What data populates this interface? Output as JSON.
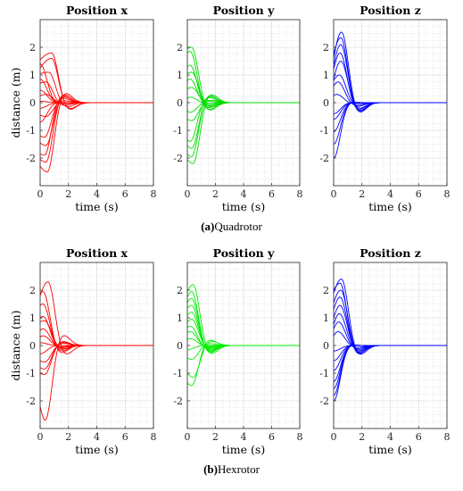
{
  "figure": {
    "captions": [
      {
        "tag": "(a)",
        "text": "Quadrotor"
      },
      {
        "tag": "(b)",
        "text": "Hexrotor"
      }
    ]
  },
  "chart_data": [
    {
      "type": "line",
      "title": "Position x",
      "xlabel": "time (s)",
      "ylabel": "distance (m)",
      "xlim": [
        0,
        8
      ],
      "ylim": [
        -3,
        3
      ],
      "xticks": [
        0,
        2,
        4,
        6,
        8
      ],
      "yticks": [
        -2,
        -1,
        0,
        1,
        2
      ],
      "grid": true,
      "color": "#ff0000",
      "series": [
        {
          "x0": 1.55,
          "peak": 1.8,
          "t_peak": 0.8
        },
        {
          "x0": 1.25,
          "peak": 1.6,
          "t_peak": 0.8
        },
        {
          "x0": 1.4,
          "peak": 1.4,
          "t_peak": 0.0
        },
        {
          "x0": 1.05,
          "peak": 1.1,
          "t_peak": 0.6
        },
        {
          "x0": 0.85,
          "peak": 0.85,
          "t_peak": 0.0
        },
        {
          "x0": 0.7,
          "peak": 0.75,
          "t_peak": 0.4
        },
        {
          "x0": 0.45,
          "peak": 0.45,
          "t_peak": 0.0
        },
        {
          "x0": 0.25,
          "peak": 0.3,
          "t_peak": 0.4
        },
        {
          "x0": 0.05,
          "peak": 0.05,
          "t_peak": 0.0
        },
        {
          "x0": -0.2,
          "peak": -0.2,
          "t_peak": 0.0
        },
        {
          "x0": -0.45,
          "peak": -0.5,
          "t_peak": 0.4
        },
        {
          "x0": -0.7,
          "peak": -0.7,
          "t_peak": 0.0
        },
        {
          "x0": -1.2,
          "peak": -1.25,
          "t_peak": 0.3
        },
        {
          "x0": -1.45,
          "peak": -1.55,
          "t_peak": 0.4
        },
        {
          "x0": -1.85,
          "peak": -1.9,
          "t_peak": 0.3
        },
        {
          "x0": -2.05,
          "peak": -2.15,
          "t_peak": 0.4
        },
        {
          "x0": -2.3,
          "peak": -2.5,
          "t_peak": 0.5
        }
      ]
    },
    {
      "type": "line",
      "title": "Position y",
      "xlabel": "time (s)",
      "ylabel": "",
      "xlim": [
        0,
        8
      ],
      "ylim": [
        -3,
        3
      ],
      "xticks": [
        0,
        2,
        4,
        6,
        8
      ],
      "yticks": [
        -2,
        -1,
        0,
        1,
        2
      ],
      "grid": true,
      "color": "#00dd00",
      "series": [
        {
          "x0": 1.95,
          "peak": 2.0,
          "t_peak": 0.3
        },
        {
          "x0": 1.8,
          "peak": 1.85,
          "t_peak": 0.2
        },
        {
          "x0": 1.3,
          "peak": 1.35,
          "t_peak": 0.2
        },
        {
          "x0": 1.05,
          "peak": 1.1,
          "t_peak": 0.3
        },
        {
          "x0": 0.8,
          "peak": 0.85,
          "t_peak": 0.2
        },
        {
          "x0": 0.5,
          "peak": 0.55,
          "t_peak": 0.3
        },
        {
          "x0": 0.15,
          "peak": 0.2,
          "t_peak": 0.2
        },
        {
          "x0": -0.3,
          "peak": -0.35,
          "t_peak": 0.2
        },
        {
          "x0": -0.6,
          "peak": -0.65,
          "t_peak": 0.3
        },
        {
          "x0": -1.35,
          "peak": -1.4,
          "t_peak": 0.2
        },
        {
          "x0": -1.55,
          "peak": -1.65,
          "t_peak": 0.3
        },
        {
          "x0": -1.85,
          "peak": -1.95,
          "t_peak": 0.3
        },
        {
          "x0": -2.05,
          "peak": -2.2,
          "t_peak": 0.4
        }
      ]
    },
    {
      "type": "line",
      "title": "Position z",
      "xlabel": "time (s)",
      "ylabel": "",
      "xlim": [
        0,
        8
      ],
      "ylim": [
        -3,
        3
      ],
      "xticks": [
        0,
        2,
        4,
        6,
        8
      ],
      "yticks": [
        -2,
        -1,
        0,
        1,
        2
      ],
      "grid": true,
      "color": "#0000ff",
      "series": [
        {
          "x0": 1.6,
          "peak": 2.55,
          "t_peak": 0.55
        },
        {
          "x0": 1.75,
          "peak": 2.35,
          "t_peak": 0.5
        },
        {
          "x0": 1.35,
          "peak": 2.1,
          "t_peak": 0.5
        },
        {
          "x0": 1.2,
          "peak": 1.8,
          "t_peak": 0.45
        },
        {
          "x0": 0.85,
          "peak": 1.5,
          "t_peak": 0.5
        },
        {
          "x0": 0.8,
          "peak": 1.0,
          "t_peak": 0.4
        },
        {
          "x0": 0.6,
          "peak": 0.75,
          "t_peak": 0.3
        },
        {
          "x0": 0.25,
          "peak": 0.3,
          "t_peak": 0.2
        },
        {
          "x0": -0.4,
          "peak": -0.4,
          "t_peak": 0.0
        },
        {
          "x0": -0.6,
          "peak": -0.6,
          "t_peak": 0.0
        },
        {
          "x0": -1.05,
          "peak": -1.05,
          "t_peak": 0.0
        },
        {
          "x0": -1.5,
          "peak": -1.5,
          "t_peak": 0.0
        },
        {
          "x0": -2.0,
          "peak": -2.0,
          "t_peak": 0.0
        }
      ]
    },
    {
      "type": "line",
      "title": "Position x",
      "xlabel": "time (s)",
      "ylabel": "distance (m)",
      "xlim": [
        0,
        8
      ],
      "ylim": [
        -3,
        3
      ],
      "xticks": [
        0,
        2,
        4,
        6,
        8
      ],
      "yticks": [
        -2,
        -1,
        0,
        1,
        2
      ],
      "grid": true,
      "color": "#ff0000",
      "series": [
        {
          "x0": 1.8,
          "peak": 2.3,
          "t_peak": 0.55
        },
        {
          "x0": 1.9,
          "peak": 1.95,
          "t_peak": 0.2
        },
        {
          "x0": 1.45,
          "peak": 1.5,
          "t_peak": 0.2
        },
        {
          "x0": 1.0,
          "peak": 1.05,
          "t_peak": 0.2
        },
        {
          "x0": 0.85,
          "peak": 0.9,
          "t_peak": 0.3
        },
        {
          "x0": 0.55,
          "peak": 0.6,
          "t_peak": 0.2
        },
        {
          "x0": 0.3,
          "peak": 0.35,
          "t_peak": 0.2
        },
        {
          "x0": 0.1,
          "peak": 0.1,
          "t_peak": 0.0
        },
        {
          "x0": -0.3,
          "peak": -0.3,
          "t_peak": 0.0
        },
        {
          "x0": -0.55,
          "peak": -0.6,
          "t_peak": 0.3
        },
        {
          "x0": -0.8,
          "peak": -0.85,
          "t_peak": 0.3
        },
        {
          "x0": -1.0,
          "peak": -1.05,
          "t_peak": 0.3
        },
        {
          "x0": -2.2,
          "peak": -2.7,
          "t_peak": 0.35
        }
      ]
    },
    {
      "type": "line",
      "title": "Position y",
      "xlabel": "time (s)",
      "ylabel": "",
      "xlim": [
        0,
        8
      ],
      "ylim": [
        -3,
        3
      ],
      "xticks": [
        0,
        2,
        4,
        6,
        8
      ],
      "yticks": [
        -2,
        -1,
        0,
        1,
        2
      ],
      "grid": true,
      "color": "#00ee00",
      "series": [
        {
          "x0": 1.95,
          "peak": 2.2,
          "t_peak": 0.4
        },
        {
          "x0": 1.75,
          "peak": 1.95,
          "t_peak": 0.3
        },
        {
          "x0": 1.55,
          "peak": 1.7,
          "t_peak": 0.3
        },
        {
          "x0": 1.35,
          "peak": 1.45,
          "t_peak": 0.3
        },
        {
          "x0": 1.1,
          "peak": 1.2,
          "t_peak": 0.3
        },
        {
          "x0": 0.85,
          "peak": 0.95,
          "t_peak": 0.3
        },
        {
          "x0": 0.65,
          "peak": 0.7,
          "t_peak": 0.2
        },
        {
          "x0": 0.45,
          "peak": 0.5,
          "t_peak": 0.2
        },
        {
          "x0": 0.2,
          "peak": 0.25,
          "t_peak": 0.2
        },
        {
          "x0": -0.15,
          "peak": -0.15,
          "t_peak": 0.0
        },
        {
          "x0": -0.45,
          "peak": -0.5,
          "t_peak": 0.3
        },
        {
          "x0": -1.0,
          "peak": -1.15,
          "t_peak": 0.4
        },
        {
          "x0": -1.35,
          "peak": -1.45,
          "t_peak": 0.3
        }
      ]
    },
    {
      "type": "line",
      "title": "Position z",
      "xlabel": "time (s)",
      "ylabel": "",
      "xlim": [
        0,
        8
      ],
      "ylim": [
        -3,
        3
      ],
      "xticks": [
        0,
        2,
        4,
        6,
        8
      ],
      "yticks": [
        -2,
        -1,
        0,
        1,
        2
      ],
      "grid": true,
      "color": "#0000ff",
      "series": [
        {
          "x0": 1.9,
          "peak": 2.4,
          "t_peak": 0.55
        },
        {
          "x0": 2.0,
          "peak": 2.25,
          "t_peak": 0.45
        },
        {
          "x0": 1.55,
          "peak": 2.0,
          "t_peak": 0.5
        },
        {
          "x0": 1.3,
          "peak": 1.75,
          "t_peak": 0.45
        },
        {
          "x0": 1.0,
          "peak": 1.45,
          "t_peak": 0.45
        },
        {
          "x0": 0.75,
          "peak": 1.15,
          "t_peak": 0.4
        },
        {
          "x0": 0.6,
          "peak": 0.85,
          "t_peak": 0.35
        },
        {
          "x0": 0.35,
          "peak": 0.5,
          "t_peak": 0.3
        },
        {
          "x0": -0.2,
          "peak": -0.2,
          "t_peak": 0.0
        },
        {
          "x0": -0.55,
          "peak": -0.55,
          "t_peak": 0.0
        },
        {
          "x0": -0.9,
          "peak": -0.9,
          "t_peak": 0.0
        },
        {
          "x0": -1.3,
          "peak": -1.3,
          "t_peak": 0.0
        },
        {
          "x0": -1.55,
          "peak": -1.55,
          "t_peak": 0.0
        },
        {
          "x0": -1.8,
          "peak": -1.8,
          "t_peak": 0.0
        },
        {
          "x0": -2.0,
          "peak": -2.0,
          "t_peak": 0.0
        }
      ]
    }
  ]
}
